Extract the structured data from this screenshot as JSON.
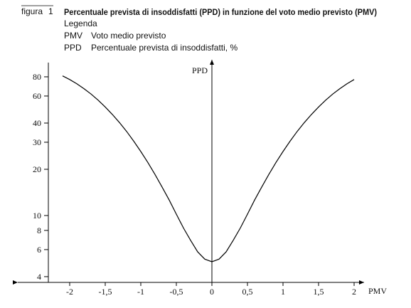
{
  "chart_data": {
    "type": "line",
    "figure_label": "figura",
    "figure_number": "1",
    "title": "Percentuale prevista di insoddisfatti (PPD) in funzione del voto medio previsto (PMV)",
    "legend_title": "Legenda",
    "legend_items": [
      {
        "symbol": "PMV",
        "description": "Voto medio previsto"
      },
      {
        "symbol": "PPD",
        "description": "Percentuale prevista di insoddisfatti, %"
      }
    ],
    "x_label": "PMV",
    "y_label": "PPD",
    "x": [
      -2.1,
      -2.0,
      -1.9,
      -1.8,
      -1.7,
      -1.6,
      -1.5,
      -1.4,
      -1.3,
      -1.2,
      -1.1,
      -1.0,
      -0.9,
      -0.8,
      -0.7,
      -0.6,
      -0.5,
      -0.4,
      -0.3,
      -0.2,
      -0.1,
      0,
      0.1,
      0.2,
      0.3,
      0.4,
      0.5,
      0.6,
      0.7,
      0.8,
      0.9,
      1.0,
      1.1,
      1.2,
      1.3,
      1.4,
      1.5,
      1.6,
      1.7,
      1.8,
      1.9,
      2.0
    ],
    "values": [
      81.1,
      76.8,
      72.1,
      67.0,
      61.8,
      56.4,
      50.9,
      45.5,
      40.3,
      35.3,
      30.5,
      26.1,
      22.1,
      18.5,
      15.3,
      12.6,
      10.2,
      8.3,
      6.9,
      5.8,
      5.2,
      5.0,
      5.2,
      5.8,
      6.9,
      8.3,
      10.2,
      12.6,
      15.3,
      18.5,
      22.1,
      26.1,
      30.5,
      35.3,
      40.3,
      45.5,
      50.9,
      56.4,
      61.8,
      67.0,
      72.1,
      76.8
    ],
    "color": "#000000",
    "xlim": [
      -2.73,
      2.14
    ],
    "xticks": [
      -2,
      {
        "value": -1.5,
        "label": "-1,5"
      },
      -1,
      {
        "value": -0.5,
        "label": "-0,5"
      },
      0,
      {
        "value": 0.5,
        "label": "0,5"
      },
      1,
      {
        "value": 1.5,
        "label": "1,5"
      },
      2
    ],
    "ylim": [
      3.67,
      99
    ],
    "log_y": true,
    "yticks": [
      4,
      6,
      8,
      10,
      20,
      30,
      40,
      60,
      80
    ]
  }
}
